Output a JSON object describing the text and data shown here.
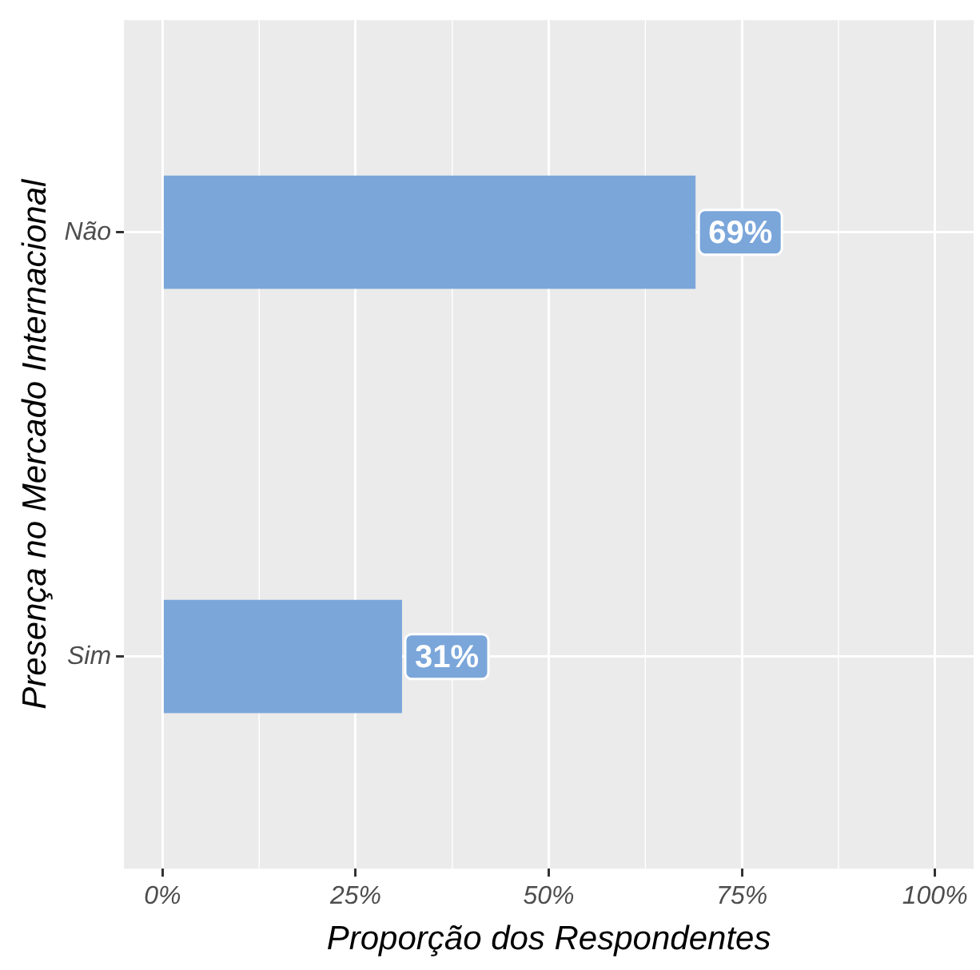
{
  "chart_data": {
    "type": "bar",
    "orientation": "horizontal",
    "xlabel": "Proporção dos Respondentes",
    "ylabel": "Presença no Mercado Internacional",
    "categories": [
      "Não",
      "Sim"
    ],
    "values": [
      69,
      31
    ],
    "color": "#7aa6da",
    "value_labels": [
      "69%",
      "31%"
    ],
    "data_labels": true,
    "xlim": [
      -5,
      105
    ],
    "xticks": [
      {
        "value": 0,
        "label": "0%"
      },
      {
        "value": 25,
        "label": "25%"
      },
      {
        "value": 50,
        "label": "50%"
      },
      {
        "value": 75,
        "label": "75%"
      },
      {
        "value": 100,
        "label": "100%"
      }
    ],
    "grid": true,
    "legend": false
  }
}
